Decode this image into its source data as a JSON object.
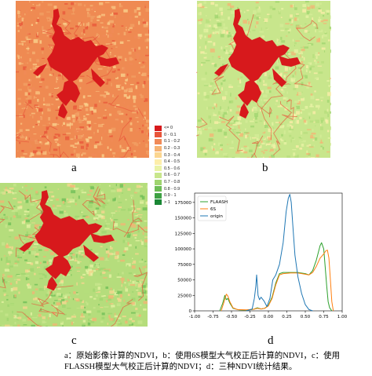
{
  "panels": [
    {
      "id": "a",
      "label": "a",
      "palette": "original"
    },
    {
      "id": "b",
      "label": "b",
      "palette": "6s"
    },
    {
      "id": "c",
      "label": "c",
      "palette": "flaash"
    }
  ],
  "panel_d_label": "d",
  "legend": {
    "items": [
      {
        "label": "<= 0",
        "color": "#d7191c"
      },
      {
        "label": "0 - 0.1",
        "color": "#e8553a"
      },
      {
        "label": "0.1 - 0.2",
        "color": "#f08a58"
      },
      {
        "label": "0.2 - 0.3",
        "color": "#f6b374"
      },
      {
        "label": "0.3 - 0.4",
        "color": "#fbd690"
      },
      {
        "label": "0.4 - 0.5",
        "color": "#fdeeaa"
      },
      {
        "label": "0.5 - 0.6",
        "color": "#eaf3a6"
      },
      {
        "label": "0.6 - 0.7",
        "color": "#c8e68c"
      },
      {
        "label": "0.7 - 0.8",
        "color": "#9fd46f"
      },
      {
        "label": "0.8 - 0.9",
        "color": "#6cbc55"
      },
      {
        "label": "0.9 - 1",
        "color": "#3ea143"
      },
      {
        "label": "> 1",
        "color": "#1a8735"
      }
    ]
  },
  "caption": {
    "line1": "a：原始影像计算的NDVI，b：使用6S模型大气校正后计算的NDVI，c：使用",
    "line2": "FLASSH模型大气校正后计算的NDVI；d：三种NDVI统计结果。"
  },
  "chart_data": {
    "type": "line",
    "xlim": [
      -1.0,
      1.0
    ],
    "ylim": [
      0,
      190000
    ],
    "xticks": [
      "-1.00",
      "-0.75",
      "-0.50",
      "-0.25",
      "0.00",
      "0.25",
      "0.50",
      "0.75",
      "1.00"
    ],
    "xtick_values": [
      -1.0,
      -0.75,
      -0.5,
      -0.25,
      0.0,
      0.25,
      0.5,
      0.75,
      1.0
    ],
    "yticks": [
      "0",
      "25000",
      "50000",
      "75000",
      "100000",
      "125000",
      "150000",
      "175000"
    ],
    "ytick_values": [
      0,
      25000,
      50000,
      75000,
      100000,
      125000,
      150000,
      175000
    ],
    "legend_position": "top-left",
    "series": [
      {
        "name": "FLAASH",
        "color": "#2ca02c",
        "x": [
          -0.66,
          -0.62,
          -0.59,
          -0.57,
          -0.55,
          -0.52,
          -0.48,
          -0.4,
          -0.3,
          -0.2,
          -0.15,
          -0.1,
          -0.05,
          0.0,
          0.05,
          0.1,
          0.15,
          0.2,
          0.3,
          0.4,
          0.5,
          0.55,
          0.6,
          0.65,
          0.7,
          0.72,
          0.75,
          0.77,
          0.79,
          0.81,
          0.83,
          0.86
        ],
        "y": [
          0,
          12000,
          25000,
          18000,
          20000,
          12000,
          4000,
          1500,
          1200,
          2500,
          5000,
          3000,
          4000,
          9000,
          22000,
          45000,
          60000,
          62000,
          62000,
          62000,
          60000,
          58000,
          65000,
          82000,
          105000,
          110000,
          100000,
          70000,
          40000,
          15000,
          5000,
          0
        ]
      },
      {
        "name": "6S",
        "color": "#ff7f0e",
        "x": [
          -0.64,
          -0.6,
          -0.57,
          -0.55,
          -0.52,
          -0.48,
          -0.42,
          -0.3,
          -0.2,
          -0.15,
          -0.1,
          -0.05,
          0.0,
          0.05,
          0.1,
          0.15,
          0.2,
          0.3,
          0.4,
          0.5,
          0.55,
          0.6,
          0.65,
          0.7,
          0.75,
          0.78,
          0.8,
          0.82,
          0.84,
          0.86,
          0.88
        ],
        "y": [
          0,
          15000,
          27000,
          24000,
          14000,
          5000,
          2000,
          1500,
          2500,
          4000,
          3000,
          4000,
          8000,
          20000,
          42000,
          58000,
          60000,
          61000,
          61000,
          59000,
          58000,
          62000,
          72000,
          85000,
          92000,
          97000,
          98000,
          85000,
          50000,
          15000,
          0
        ]
      },
      {
        "name": "origin",
        "color": "#1f77b4",
        "x": [
          -0.3,
          -0.22,
          -0.19,
          -0.17,
          -0.16,
          -0.15,
          -0.14,
          -0.12,
          -0.1,
          -0.06,
          -0.02,
          0.02,
          0.06,
          0.1,
          0.15,
          0.2,
          0.24,
          0.27,
          0.29,
          0.31,
          0.33,
          0.36,
          0.4,
          0.45,
          0.5,
          0.55,
          0.6
        ],
        "y": [
          0,
          3000,
          20000,
          40000,
          58000,
          42000,
          25000,
          18000,
          22000,
          16000,
          7000,
          20000,
          50000,
          58000,
          75000,
          110000,
          160000,
          182000,
          188000,
          175000,
          140000,
          90000,
          55000,
          28000,
          10000,
          2000,
          0
        ]
      }
    ]
  }
}
